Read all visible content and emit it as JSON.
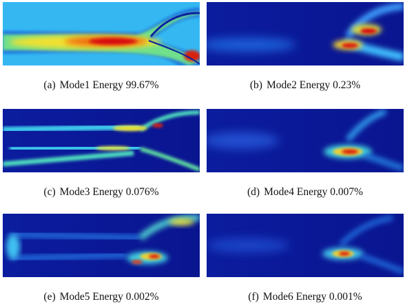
{
  "panels": [
    {
      "label": "(a)",
      "caption": "Mode1 Energy 99.67%"
    },
    {
      "label": "(b)",
      "caption": "Mode2 Energy 0.23%"
    },
    {
      "label": "(c)",
      "caption": "Mode3 Energy 0.076%"
    },
    {
      "label": "(d)",
      "caption": "Mode4 Energy 0.007%"
    },
    {
      "label": "(e)",
      "caption": "Mode5 Energy 0.002%"
    },
    {
      "label": "(f)",
      "caption": "Mode6 Energy 0.001%"
    }
  ]
}
